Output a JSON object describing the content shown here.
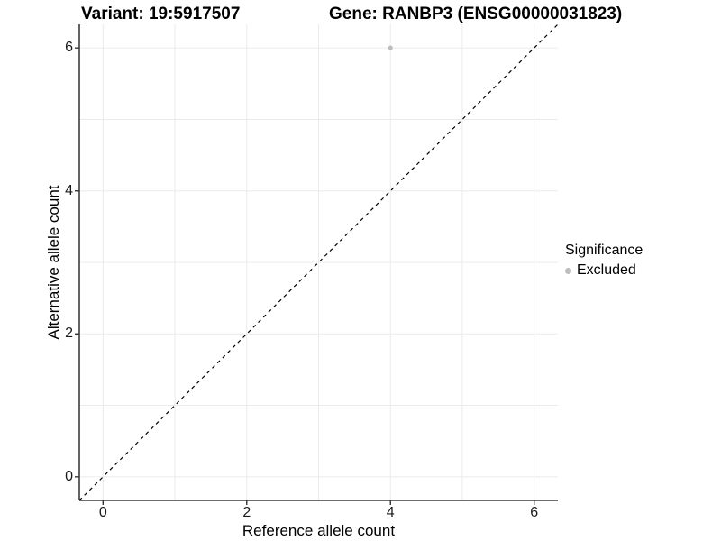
{
  "header": {
    "title_left": "Variant: 19:5917507",
    "title_right": "Gene: RANBP3 (ENSG00000031823)"
  },
  "chart_data": {
    "type": "scatter",
    "titles": {
      "left": "Variant: 19:5917507",
      "right": "Gene: RANBP3 (ENSG00000031823)"
    },
    "xlabel": "Reference allele count",
    "ylabel": "Alternative allele count",
    "xlim": [
      -0.33,
      6.33
    ],
    "ylim": [
      -0.33,
      6.33
    ],
    "x_ticks": [
      0,
      2,
      4,
      6
    ],
    "y_ticks": [
      0,
      2,
      4,
      6
    ],
    "gridline_values": [
      0,
      1,
      2,
      3,
      4,
      5,
      6
    ],
    "grid": true,
    "points": [
      {
        "x": 4,
        "y": 6,
        "series": "Excluded"
      }
    ],
    "reference_line": {
      "slope": 1,
      "intercept": 0,
      "style": "dashed",
      "color": "#000000"
    },
    "legend": {
      "title": "Significance",
      "position": "right",
      "entries": [
        {
          "label": "Excluded",
          "color": "#bdbdbd",
          "marker": "circle"
        }
      ]
    }
  },
  "colors": {
    "background": "#ffffff",
    "grid": "#ebebeb",
    "axis_line": "#3c3c3c",
    "tick": "#333333",
    "point": "#bdbdbd",
    "text": "#000000"
  }
}
